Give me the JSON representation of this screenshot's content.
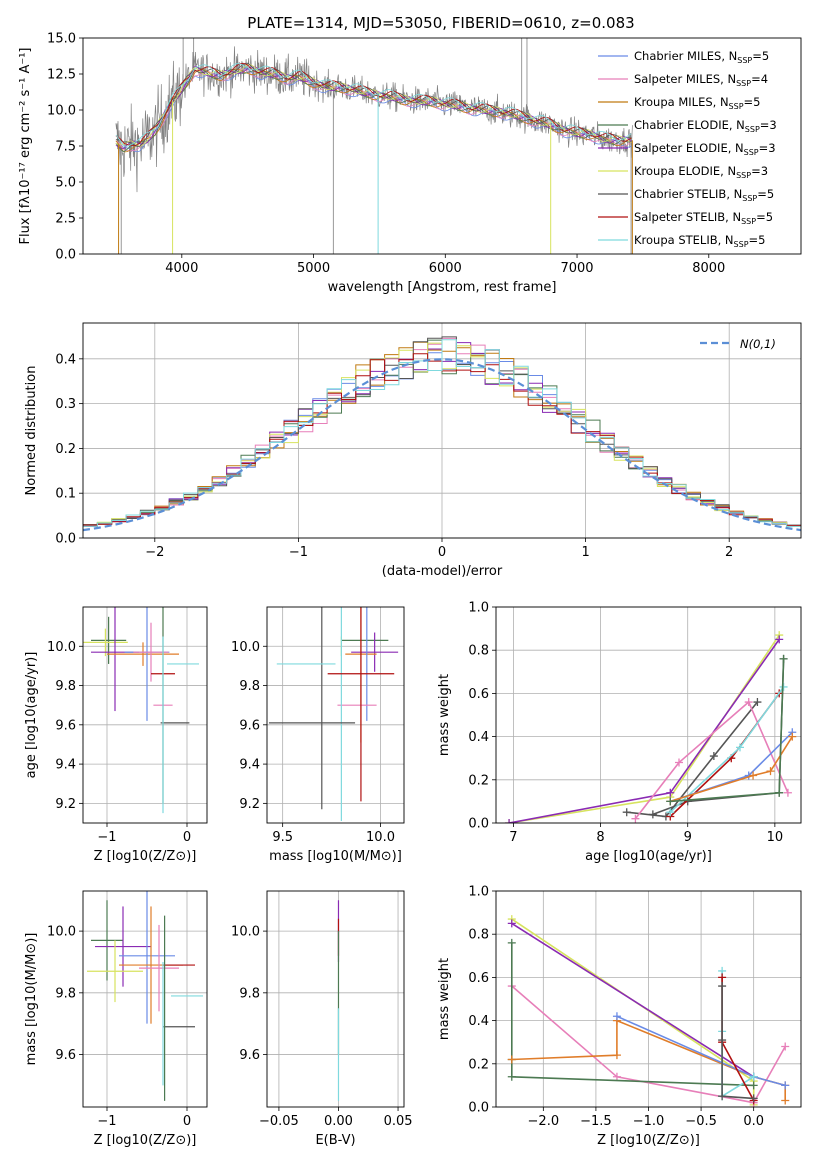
{
  "figure": {
    "title": "PLATE=1314, MJD=53050, FIBERID=0610, z=0.083"
  },
  "colors": {
    "chabrier_miles": "#6a8be6",
    "salpeter_miles": "#e77fb9",
    "kroupa_miles": "#c07a12",
    "chabrier_elodie": "#4c7a52",
    "salpeter_elodie": "#8a2ab3",
    "kroupa_elodie": "#d7e35f",
    "chabrier_stelib": "#555555",
    "salpeter_stelib": "#b01010",
    "kroupa_stelib": "#7fd9de",
    "orange": "#e07d2a",
    "gaussian": "#5b8fd6",
    "grid": "#b0b0b0",
    "data_spectrum": "#808080"
  },
  "chart_data": [
    {
      "id": "spectrum",
      "type": "line",
      "title": "PLATE=1314, MJD=53050, FIBERID=0610, z=0.083",
      "xlabel": "wavelength [Angstrom, rest frame]",
      "ylabel": "Flux [f_λ 10^-17 erg cm^-2 s^-1 A^-1]",
      "xlim": [
        3250,
        8700
      ],
      "ylim": [
        0,
        15
      ],
      "xticks": [
        4000,
        5000,
        6000,
        7000,
        8000
      ],
      "yticks": [
        0.0,
        2.5,
        5.0,
        7.5,
        10.0,
        12.5,
        15.0
      ],
      "grid": false,
      "legend": "top-right",
      "series": [
        {
          "name": "Chabrier MILES, N_SSP=5",
          "key": "chabrier_miles"
        },
        {
          "name": "Salpeter MILES, N_SSP=4",
          "key": "salpeter_miles"
        },
        {
          "name": "Kroupa MILES, N_SSP=5",
          "key": "kroupa_miles"
        },
        {
          "name": "Chabrier ELODIE, N_SSP=3",
          "key": "chabrier_elodie"
        },
        {
          "name": "Salpeter ELODIE, N_SSP=3",
          "key": "salpeter_elodie"
        },
        {
          "name": "Kroupa ELODIE, N_SSP=3",
          "key": "kroupa_elodie"
        },
        {
          "name": "Chabrier STELIB, N_SSP=5",
          "key": "chabrier_stelib"
        },
        {
          "name": "Salpeter STELIB, N_SSP=5",
          "key": "salpeter_stelib"
        },
        {
          "name": "Kroupa STELIB, N_SSP=5",
          "key": "kroupa_stelib"
        }
      ],
      "continuum": {
        "x": [
          3500,
          3560,
          3620,
          3680,
          3740,
          3800,
          3860,
          3920,
          3980,
          4040,
          4100,
          4200,
          4300,
          4400,
          4500,
          4600,
          4700,
          4800,
          4900,
          5000,
          5100,
          5200,
          5300,
          5400,
          5500,
          5600,
          5700,
          5800,
          5900,
          6000,
          6100,
          6200,
          6300,
          6400,
          6500,
          6600,
          6700,
          6800,
          6900,
          7000,
          7100,
          7200,
          7300,
          7400
        ],
        "y": [
          7.8,
          7.4,
          7.6,
          7.6,
          8.0,
          8.6,
          9.5,
          10.5,
          11.2,
          12.0,
          12.8,
          12.6,
          12.4,
          12.7,
          12.9,
          12.6,
          12.5,
          12.2,
          12.3,
          11.9,
          11.6,
          11.6,
          11.4,
          11.2,
          11.0,
          10.9,
          10.7,
          10.6,
          10.6,
          10.4,
          10.3,
          10.1,
          10.0,
          9.9,
          9.7,
          9.5,
          9.2,
          9.0,
          8.6,
          8.4,
          8.3,
          8.0,
          7.9,
          7.9
        ]
      }
    },
    {
      "id": "residuals",
      "type": "histogram",
      "xlabel": "(data-model)/error",
      "ylabel": "Normed distribution",
      "xlim": [
        -2.5,
        2.5
      ],
      "ylim": [
        0,
        0.48
      ],
      "xticks": [
        -2,
        -1,
        0,
        1,
        2
      ],
      "yticks": [
        0.0,
        0.1,
        0.2,
        0.3,
        0.4
      ],
      "grid": true,
      "legend_label": "N(0,1)",
      "bin_width": 0.1
    },
    {
      "id": "age_vs_Z",
      "type": "errorbar",
      "xlabel": "Z [log10(Z/Z⊙)]",
      "ylabel": "age  [log10(age/yr)]",
      "xlim": [
        -1.3,
        0.25
      ],
      "ylim": [
        9.1,
        10.2
      ],
      "xticks": [
        -1,
        0
      ],
      "yticks": [
        9.2,
        9.4,
        9.6,
        9.8,
        10.0
      ],
      "grid": true,
      "points": [
        {
          "key": "chabrier_elodie",
          "x": -0.98,
          "xerr": 0.22,
          "y": 10.03,
          "yerr": 0.12
        },
        {
          "key": "kroupa_elodie",
          "x": -1.02,
          "xerr": 0.28,
          "y": 10.02,
          "yerr": 0.07
        },
        {
          "key": "salpeter_elodie",
          "x": -0.9,
          "xerr": 0.3,
          "y": 9.97,
          "yerr": 0.3
        },
        {
          "key": "orange",
          "x": -0.55,
          "xerr": 0.45,
          "y": 9.96,
          "yerr": 0.06
        },
        {
          "key": "chabrier_miles",
          "x": -0.5,
          "xerr": 0.28,
          "y": 9.97,
          "yerr": 0.35
        },
        {
          "key": "salpeter_miles",
          "x": -0.45,
          "xerr": 0.22,
          "y": 9.97,
          "yerr": 0.15
        },
        {
          "key": "kroupa_stelib",
          "x": -0.05,
          "xerr": 0.2,
          "y": 9.91,
          "yerr": 0.0
        },
        {
          "key": "salpeter_stelib",
          "x": -0.3,
          "xerr": 0.15,
          "y": 9.86,
          "yerr": 0.0
        },
        {
          "key": "salpeter_miles",
          "x": -0.3,
          "xerr": 0.12,
          "y": 9.7,
          "yerr": 0.0
        },
        {
          "key": "chabrier_stelib",
          "x": -0.15,
          "xerr": 0.18,
          "y": 9.61,
          "yerr": 0.0
        },
        {
          "key": "chabrier_elodie",
          "x": -0.3,
          "xerr": 0.0,
          "y": 9.7,
          "yerr": 0.5
        },
        {
          "key": "kroupa_stelib",
          "x": -0.3,
          "xerr": 0.0,
          "y": 9.6,
          "yerr": 0.45
        }
      ]
    },
    {
      "id": "age_vs_mass",
      "type": "errorbar",
      "xlabel": "mass [log10(M/M⊙)]",
      "ylabel": "",
      "xlim": [
        9.42,
        10.12
      ],
      "ylim": [
        9.1,
        10.2
      ],
      "xticks": [
        9.5,
        10.0
      ],
      "yticks": [
        9.2,
        9.4,
        9.6,
        9.8,
        10.0
      ],
      "grid": true,
      "points": [
        {
          "key": "chabrier_elodie",
          "x": 9.92,
          "xerr": 0.12,
          "y": 10.03,
          "yerr": 0.0
        },
        {
          "key": "chabrier_stelib",
          "x": 9.7,
          "xerr": 0.0,
          "y": 9.7,
          "yerr": 0.53
        },
        {
          "key": "kroupa_elodie",
          "x": 9.8,
          "xerr": 0.0,
          "y": 10.0,
          "yerr": 0.05
        },
        {
          "key": "salpeter_elodie",
          "x": 9.97,
          "xerr": 0.12,
          "y": 9.97,
          "yerr": 0.1
        },
        {
          "key": "orange",
          "x": 9.9,
          "xerr": 0.08,
          "y": 9.96,
          "yerr": 0.45
        },
        {
          "key": "chabrier_miles",
          "x": 9.93,
          "xerr": 0.0,
          "y": 9.97,
          "yerr": 0.35
        },
        {
          "key": "salpeter_miles",
          "x": 9.88,
          "xerr": 0.1,
          "y": 9.7,
          "yerr": 0.0
        },
        {
          "key": "kroupa_stelib",
          "x": 9.8,
          "xerr": 0.0,
          "y": 9.91,
          "yerr": 0.8
        },
        {
          "key": "kroupa_stelib",
          "x": 9.62,
          "xerr": 0.15,
          "y": 9.91,
          "yerr": 0.0
        },
        {
          "key": "salpeter_stelib",
          "x": 9.9,
          "xerr": 0.17,
          "y": 9.86,
          "yerr": 0.65
        },
        {
          "key": "chabrier_stelib",
          "x": 9.65,
          "xerr": 0.22,
          "y": 9.61,
          "yerr": 0.0
        }
      ]
    },
    {
      "id": "mass_weight_vs_age",
      "type": "line",
      "xlabel": "age  [log10(age/yr)]",
      "ylabel": "mass weight",
      "xlim": [
        6.8,
        10.3
      ],
      "ylim": [
        0.0,
        1.0
      ],
      "xticks": [
        7,
        8,
        9,
        10
      ],
      "yticks": [
        0.0,
        0.2,
        0.4,
        0.6,
        0.8,
        1.0
      ],
      "grid": true,
      "series": [
        {
          "key": "kroupa_elodie",
          "x": [
            6.95,
            8.8,
            10.05
          ],
          "y": [
            0.0,
            0.12,
            0.87
          ]
        },
        {
          "key": "salpeter_elodie",
          "x": [
            6.95,
            8.8,
            10.05
          ],
          "y": [
            0.0,
            0.14,
            0.85
          ]
        },
        {
          "key": "chabrier_stelib",
          "x": [
            8.3,
            8.75,
            9.3,
            9.8
          ],
          "y": [
            0.05,
            0.03,
            0.31,
            0.56
          ]
        },
        {
          "key": "salpeter_miles",
          "x": [
            8.4,
            8.9,
            9.7,
            10.15
          ],
          "y": [
            0.02,
            0.28,
            0.56,
            0.14
          ]
        },
        {
          "key": "chabrier_stelib",
          "x": [
            8.6,
            9.0,
            10.05,
            10.1
          ],
          "y": [
            0.04,
            0.1,
            0.14,
            0.76
          ]
        },
        {
          "key": "salpeter_stelib",
          "x": [
            8.8,
            9.5,
            10.05
          ],
          "y": [
            0.03,
            0.3,
            0.6
          ]
        },
        {
          "key": "kroupa_stelib",
          "x": [
            8.8,
            9.6,
            10.1
          ],
          "y": [
            0.05,
            0.35,
            0.63
          ]
        },
        {
          "key": "chabrier_miles",
          "x": [
            8.8,
            9.7,
            10.2
          ],
          "y": [
            0.1,
            0.22,
            0.42
          ]
        },
        {
          "key": "orange",
          "x": [
            8.8,
            9.75,
            9.95,
            10.2
          ],
          "y": [
            0.1,
            0.22,
            0.24,
            0.4
          ]
        },
        {
          "key": "chabrier_elodie",
          "x": [
            8.8,
            10.05,
            10.1
          ],
          "y": [
            0.1,
            0.14,
            0.76
          ]
        }
      ]
    },
    {
      "id": "mass_vs_Z",
      "type": "errorbar",
      "xlabel": "Z [log10(Z/Z⊙)]",
      "ylabel": "mass [log10(M/M⊙)]",
      "xlim": [
        -1.3,
        0.25
      ],
      "ylim": [
        9.43,
        10.13
      ],
      "xticks": [
        -1,
        0
      ],
      "yticks": [
        9.6,
        9.8,
        10.0
      ],
      "grid": true,
      "points": [
        {
          "key": "chabrier_elodie",
          "x": -1.0,
          "xerr": 0.2,
          "y": 9.97,
          "yerr": 0.13
        },
        {
          "key": "salpeter_elodie",
          "x": -0.8,
          "xerr": 0.35,
          "y": 9.95,
          "yerr": 0.13
        },
        {
          "key": "kroupa_elodie",
          "x": -0.9,
          "xerr": 0.35,
          "y": 9.87,
          "yerr": 0.1
        },
        {
          "key": "chabrier_miles",
          "x": -0.5,
          "xerr": 0.35,
          "y": 9.92,
          "yerr": 0.22
        },
        {
          "key": "orange",
          "x": -0.45,
          "xerr": 0.4,
          "y": 9.89,
          "yerr": 0.19
        },
        {
          "key": "salpeter_miles",
          "x": -0.35,
          "xerr": 0.25,
          "y": 9.88,
          "yerr": 0.14
        },
        {
          "key": "salpeter_stelib",
          "x": -0.1,
          "xerr": 0.2,
          "y": 9.89,
          "yerr": 0.0
        },
        {
          "key": "kroupa_stelib",
          "x": 0.0,
          "xerr": 0.2,
          "y": 9.79,
          "yerr": 0.0
        },
        {
          "key": "chabrier_stelib",
          "x": -0.1,
          "xerr": 0.2,
          "y": 9.69,
          "yerr": 0.0
        },
        {
          "key": "chabrier_elodie",
          "x": -0.28,
          "xerr": 0.0,
          "y": 9.75,
          "yerr": 0.3
        },
        {
          "key": "kroupa_stelib",
          "x": -0.3,
          "xerr": 0.0,
          "y": 9.7,
          "yerr": 0.2
        }
      ]
    },
    {
      "id": "mass_vs_ebv",
      "type": "errorbar",
      "xlabel": "E(B-V)",
      "ylabel": "",
      "xlim": [
        -0.06,
        0.055
      ],
      "ylim": [
        9.43,
        10.13
      ],
      "xticks": [
        -0.05,
        0.0,
        0.05
      ],
      "yticks": [
        9.6,
        9.8,
        10.0
      ],
      "grid": true,
      "points": [
        {
          "key": "salpeter_elodie",
          "x": 0.0,
          "xerr": 0.0,
          "y": 10.0,
          "yerr": 0.1
        },
        {
          "key": "salpeter_stelib",
          "x": 0.0,
          "xerr": 0.0,
          "y": 9.98,
          "yerr": 0.06
        },
        {
          "key": "chabrier_elodie",
          "x": 0.0,
          "xerr": 0.0,
          "y": 9.8,
          "yerr": 0.2
        },
        {
          "key": "kroupa_stelib",
          "x": 0.0,
          "xerr": 0.0,
          "y": 9.6,
          "yerr": 0.15
        }
      ]
    },
    {
      "id": "mass_weight_vs_Z",
      "type": "line",
      "xlabel": "Z [log10(Z/Z⊙)]",
      "ylabel": "mass weight",
      "xlim": [
        -2.45,
        0.45
      ],
      "ylim": [
        0.0,
        1.0
      ],
      "xticks": [
        -2.0,
        -1.5,
        -1.0,
        -0.5,
        0.0
      ],
      "yticks": [
        0.0,
        0.2,
        0.4,
        0.6,
        0.8,
        1.0
      ],
      "grid": true,
      "series": [
        {
          "key": "kroupa_elodie",
          "x": [
            -2.3,
            0.0,
            0.0
          ],
          "y": [
            0.87,
            0.12,
            0.01
          ]
        },
        {
          "key": "salpeter_elodie",
          "x": [
            -2.3,
            0.0
          ],
          "y": [
            0.85,
            0.14
          ]
        },
        {
          "key": "salpeter_miles",
          "x": [
            -2.3,
            -1.3,
            0.0,
            0.3
          ],
          "y": [
            0.56,
            0.14,
            0.02,
            0.28
          ]
        },
        {
          "key": "chabrier_elodie",
          "x": [
            -2.3,
            -2.3,
            -2.3,
            0.0
          ],
          "y": [
            0.76,
            0.22,
            0.14,
            0.1
          ]
        },
        {
          "key": "orange",
          "x": [
            -2.3,
            -1.3,
            -1.3,
            0.0,
            0.3,
            0.3
          ],
          "y": [
            0.22,
            0.24,
            0.4,
            0.14,
            0.1,
            0.03
          ]
        },
        {
          "key": "chabrier_miles",
          "x": [
            -1.3,
            0.0,
            0.3
          ],
          "y": [
            0.42,
            0.14,
            0.1
          ]
        },
        {
          "key": "kroupa_stelib",
          "x": [
            -0.3,
            -0.3,
            -0.3,
            0.0
          ],
          "y": [
            0.63,
            0.35,
            0.05,
            0.14
          ]
        },
        {
          "key": "salpeter_stelib",
          "x": [
            -0.3,
            -0.3,
            0.0
          ],
          "y": [
            0.6,
            0.3,
            0.03
          ]
        },
        {
          "key": "chabrier_stelib",
          "x": [
            -0.3,
            -0.3,
            -0.3,
            0.0
          ],
          "y": [
            0.56,
            0.31,
            0.05,
            0.04
          ]
        }
      ]
    }
  ]
}
